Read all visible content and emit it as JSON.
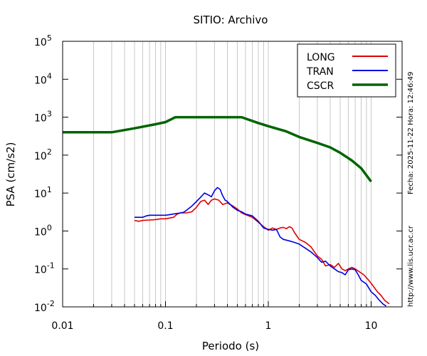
{
  "chart_data": {
    "type": "line",
    "title": "SITIO: Archivo",
    "xlabel": "Periodo (s)",
    "ylabel": "PSA (cm/s2)",
    "x_scale": "log",
    "y_scale": "log",
    "xlim": [
      0.01,
      20
    ],
    "ylim": [
      0.01,
      100000
    ],
    "grid": "vertical",
    "legend_position": "top-right",
    "x_ticks": [
      {
        "value": 0.01,
        "label": "0.01"
      },
      {
        "value": 0.1,
        "label": "0.1"
      },
      {
        "value": 1,
        "label": "1"
      },
      {
        "value": 10,
        "label": "10"
      }
    ],
    "y_ticks": [
      {
        "value": 0.01,
        "base": "10",
        "exp": "-2"
      },
      {
        "value": 0.1,
        "base": "10",
        "exp": "-1"
      },
      {
        "value": 1,
        "base": "10",
        "exp": "0"
      },
      {
        "value": 10,
        "base": "10",
        "exp": "1"
      },
      {
        "value": 100,
        "base": "10",
        "exp": "2"
      },
      {
        "value": 1000,
        "base": "10",
        "exp": "3"
      },
      {
        "value": 10000,
        "base": "10",
        "exp": "4"
      },
      {
        "value": 100000,
        "base": "10",
        "exp": "5"
      }
    ],
    "series": [
      {
        "name": "LONG",
        "color": "#e00000",
        "points": [
          [
            0.05,
            1.9
          ],
          [
            0.055,
            1.8
          ],
          [
            0.06,
            1.9
          ],
          [
            0.07,
            1.95
          ],
          [
            0.08,
            2.0
          ],
          [
            0.09,
            2.1
          ],
          [
            0.1,
            2.1
          ],
          [
            0.11,
            2.2
          ],
          [
            0.12,
            2.3
          ],
          [
            0.13,
            2.8
          ],
          [
            0.14,
            3.0
          ],
          [
            0.16,
            3.0
          ],
          [
            0.18,
            3.2
          ],
          [
            0.2,
            4.2
          ],
          [
            0.22,
            6.0
          ],
          [
            0.24,
            6.5
          ],
          [
            0.26,
            5.0
          ],
          [
            0.28,
            6.5
          ],
          [
            0.3,
            7.0
          ],
          [
            0.33,
            6.5
          ],
          [
            0.36,
            5.0
          ],
          [
            0.4,
            5.5
          ],
          [
            0.45,
            4.6
          ],
          [
            0.5,
            3.8
          ],
          [
            0.55,
            3.0
          ],
          [
            0.6,
            2.7
          ],
          [
            0.7,
            2.3
          ],
          [
            0.8,
            1.7
          ],
          [
            0.9,
            1.3
          ],
          [
            1.0,
            1.05
          ],
          [
            1.1,
            1.2
          ],
          [
            1.2,
            1.1
          ],
          [
            1.3,
            1.2
          ],
          [
            1.4,
            1.25
          ],
          [
            1.5,
            1.15
          ],
          [
            1.6,
            1.3
          ],
          [
            1.7,
            1.2
          ],
          [
            1.8,
            0.9
          ],
          [
            2.0,
            0.6
          ],
          [
            2.3,
            0.5
          ],
          [
            2.6,
            0.38
          ],
          [
            3.0,
            0.22
          ],
          [
            3.3,
            0.18
          ],
          [
            3.6,
            0.12
          ],
          [
            4.0,
            0.13
          ],
          [
            4.4,
            0.11
          ],
          [
            4.8,
            0.14
          ],
          [
            5.2,
            0.1
          ],
          [
            5.6,
            0.09
          ],
          [
            6.0,
            0.1
          ],
          [
            6.5,
            0.11
          ],
          [
            7.0,
            0.1
          ],
          [
            7.5,
            0.088
          ],
          [
            8.5,
            0.07
          ],
          [
            9.5,
            0.05
          ],
          [
            10.5,
            0.035
          ],
          [
            11.5,
            0.025
          ],
          [
            12.5,
            0.02
          ],
          [
            13.5,
            0.015
          ],
          [
            15.0,
            0.012
          ]
        ]
      },
      {
        "name": "TRAN",
        "color": "#0000e0",
        "points": [
          [
            0.05,
            2.3
          ],
          [
            0.06,
            2.3
          ],
          [
            0.065,
            2.5
          ],
          [
            0.07,
            2.6
          ],
          [
            0.08,
            2.6
          ],
          [
            0.09,
            2.6
          ],
          [
            0.1,
            2.6
          ],
          [
            0.11,
            2.7
          ],
          [
            0.12,
            2.8
          ],
          [
            0.13,
            2.9
          ],
          [
            0.14,
            3.0
          ],
          [
            0.15,
            3.1
          ],
          [
            0.16,
            3.5
          ],
          [
            0.18,
            4.5
          ],
          [
            0.2,
            6.0
          ],
          [
            0.22,
            7.8
          ],
          [
            0.24,
            10.0
          ],
          [
            0.26,
            9.0
          ],
          [
            0.28,
            8.0
          ],
          [
            0.3,
            11.5
          ],
          [
            0.32,
            14.0
          ],
          [
            0.34,
            12.5
          ],
          [
            0.36,
            8.5
          ],
          [
            0.38,
            6.5
          ],
          [
            0.4,
            6.0
          ],
          [
            0.45,
            4.3
          ],
          [
            0.5,
            3.5
          ],
          [
            0.55,
            3.2
          ],
          [
            0.6,
            2.8
          ],
          [
            0.7,
            2.5
          ],
          [
            0.8,
            1.8
          ],
          [
            0.9,
            1.2
          ],
          [
            1.0,
            1.1
          ],
          [
            1.1,
            1.05
          ],
          [
            1.2,
            1.1
          ],
          [
            1.3,
            0.7
          ],
          [
            1.4,
            0.6
          ],
          [
            1.6,
            0.55
          ],
          [
            1.8,
            0.5
          ],
          [
            2.0,
            0.45
          ],
          [
            2.3,
            0.35
          ],
          [
            2.6,
            0.28
          ],
          [
            3.0,
            0.2
          ],
          [
            3.3,
            0.15
          ],
          [
            3.6,
            0.16
          ],
          [
            4.0,
            0.12
          ],
          [
            4.4,
            0.1
          ],
          [
            4.8,
            0.085
          ],
          [
            5.2,
            0.08
          ],
          [
            5.6,
            0.07
          ],
          [
            6.0,
            0.095
          ],
          [
            6.5,
            0.1
          ],
          [
            7.0,
            0.095
          ],
          [
            7.5,
            0.07
          ],
          [
            8.0,
            0.05
          ],
          [
            9.0,
            0.04
          ],
          [
            10.0,
            0.025
          ],
          [
            11.0,
            0.02
          ],
          [
            12.0,
            0.015
          ],
          [
            13.0,
            0.012
          ],
          [
            14.0,
            0.0105
          ]
        ]
      },
      {
        "name": "CSCR",
        "color": "#006400",
        "points": [
          [
            0.01,
            400
          ],
          [
            0.03,
            400
          ],
          [
            0.05,
            510
          ],
          [
            0.08,
            650
          ],
          [
            0.1,
            740
          ],
          [
            0.125,
            1000
          ],
          [
            0.55,
            1000
          ],
          [
            0.8,
            700
          ],
          [
            1.0,
            580
          ],
          [
            1.5,
            420
          ],
          [
            2.0,
            300
          ],
          [
            3.0,
            210
          ],
          [
            4.0,
            160
          ],
          [
            5.0,
            115
          ],
          [
            6.5,
            72
          ],
          [
            8.0,
            45
          ],
          [
            10.0,
            20
          ]
        ]
      }
    ]
  },
  "side_notes": {
    "date_time": "Fecha: 2025-11-22  Hora: 12:46:49",
    "url": "http://www.lis.ucr.ac.cr"
  }
}
